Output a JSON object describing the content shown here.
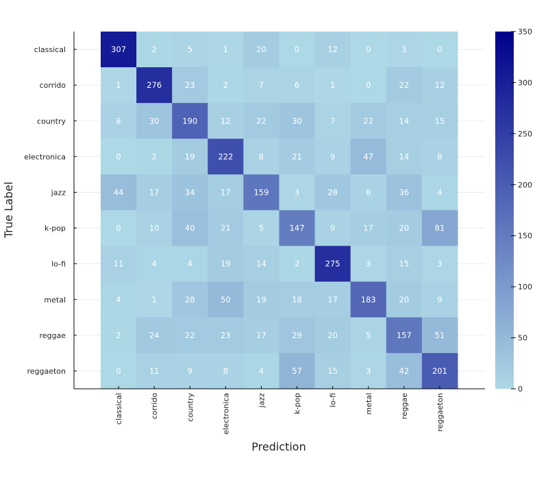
{
  "chart_data": {
    "type": "heatmap",
    "title": "",
    "xlabel": "Prediction",
    "ylabel": "True Label",
    "x_categories": [
      "classical",
      "corrido",
      "country",
      "electronica",
      "jazz",
      "k-pop",
      "lo-fi",
      "metal",
      "reggae",
      "reggaeton"
    ],
    "y_categories": [
      "classical",
      "corrido",
      "country",
      "electronica",
      "jazz",
      "k-pop",
      "lo-fi",
      "metal",
      "reggae",
      "reggaeton"
    ],
    "values": [
      [
        307,
        2,
        5,
        1,
        20,
        0,
        12,
        0,
        3,
        0
      ],
      [
        1,
        276,
        23,
        2,
        7,
        6,
        1,
        0,
        22,
        12
      ],
      [
        8,
        30,
        190,
        12,
        22,
        30,
        7,
        22,
        14,
        15
      ],
      [
        0,
        2,
        19,
        222,
        8,
        21,
        9,
        47,
        14,
        8
      ],
      [
        44,
        17,
        34,
        17,
        159,
        3,
        28,
        8,
        36,
        4
      ],
      [
        0,
        10,
        40,
        21,
        5,
        147,
        9,
        17,
        20,
        81
      ],
      [
        11,
        4,
        4,
        19,
        14,
        2,
        275,
        3,
        15,
        3
      ],
      [
        4,
        1,
        28,
        50,
        19,
        18,
        17,
        183,
        20,
        9
      ],
      [
        2,
        24,
        22,
        23,
        17,
        29,
        20,
        5,
        157,
        51
      ],
      [
        0,
        11,
        9,
        8,
        4,
        57,
        15,
        3,
        42,
        201
      ]
    ],
    "colorbar": {
      "range": [
        0,
        350
      ],
      "ticks": [
        "0",
        "50",
        "100",
        "150",
        "200",
        "250",
        "300",
        "350"
      ],
      "color_low": "#add8e6",
      "color_high": "#00008b"
    },
    "grid": true
  }
}
